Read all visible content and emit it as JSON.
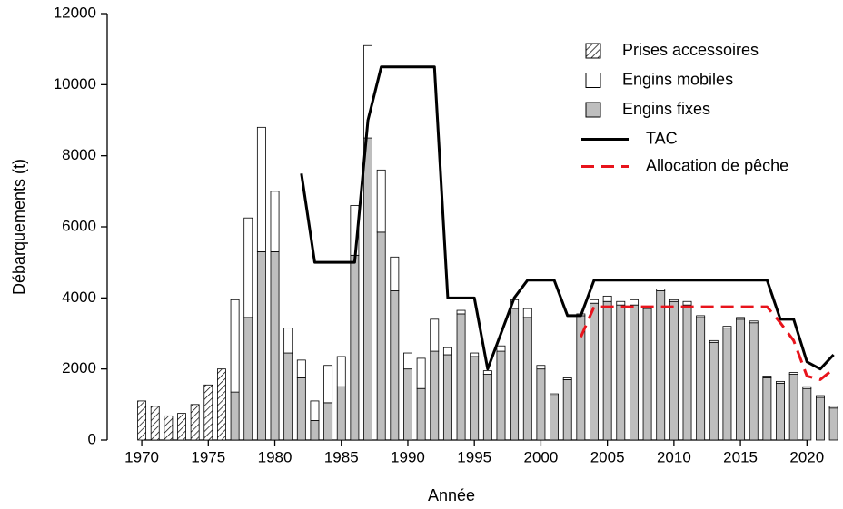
{
  "chart_data": {
    "type": "bar",
    "xlabel": "Année",
    "ylabel": "Débarquements (t)",
    "x": [
      1970,
      1971,
      1972,
      1973,
      1974,
      1975,
      1976,
      1977,
      1978,
      1979,
      1980,
      1981,
      1982,
      1983,
      1984,
      1985,
      1986,
      1987,
      1988,
      1989,
      1990,
      1991,
      1992,
      1993,
      1994,
      1995,
      1996,
      1997,
      1998,
      1999,
      2000,
      2001,
      2002,
      2003,
      2004,
      2005,
      2006,
      2007,
      2008,
      2009,
      2010,
      2011,
      2012,
      2013,
      2014,
      2015,
      2016,
      2017,
      2018,
      2019,
      2020,
      2021,
      2022
    ],
    "series": [
      {
        "name": "Prises accessoires",
        "color": "#000000",
        "pattern": "hatch",
        "values": [
          1100,
          950,
          680,
          750,
          1000,
          1550,
          2000,
          null,
          null,
          null,
          null,
          null,
          null,
          null,
          null,
          null,
          null,
          null,
          null,
          null,
          null,
          null,
          null,
          null,
          null,
          null,
          null,
          null,
          null,
          null,
          null,
          null,
          null,
          null,
          null,
          null,
          null,
          null,
          null,
          null,
          null,
          null,
          null,
          null,
          null,
          null,
          null,
          null,
          null,
          null,
          null,
          null,
          null
        ]
      },
      {
        "name": "Engins mobiles",
        "color": "#ffffff",
        "values": [
          null,
          null,
          null,
          null,
          null,
          null,
          null,
          2600,
          2800,
          3500,
          1700,
          700,
          500,
          550,
          1050,
          850,
          1400,
          2600,
          1750,
          950,
          450,
          850,
          900,
          200,
          100,
          100,
          100,
          150,
          250,
          250,
          100,
          50,
          50,
          50,
          100,
          150,
          100,
          150,
          50,
          50,
          50,
          100,
          50,
          50,
          50,
          50,
          50,
          50,
          50,
          50,
          50,
          50,
          50
        ]
      },
      {
        "name": "Engins fixes",
        "color": "#bebebe",
        "values": [
          null,
          null,
          null,
          null,
          null,
          null,
          null,
          1350,
          3450,
          5300,
          5300,
          2450,
          1750,
          550,
          1050,
          1500,
          5200,
          8500,
          5850,
          4200,
          2000,
          1450,
          2500,
          2400,
          3550,
          2350,
          1850,
          2500,
          3700,
          3450,
          2000,
          1250,
          1700,
          3500,
          3850,
          3900,
          3800,
          3800,
          3700,
          4200,
          3900,
          3800,
          3450,
          2750,
          3150,
          3400,
          3300,
          1750,
          1600,
          1850,
          1450,
          1200,
          900
        ]
      }
    ],
    "lines": [
      {
        "name": "TAC",
        "color": "#000000",
        "dash": "solid",
        "x": [
          1982,
          1983,
          1984,
          1985,
          1986,
          1987,
          1988,
          1989,
          1990,
          1991,
          1992,
          1993,
          1994,
          1995,
          1996,
          1997,
          1998,
          1999,
          2000,
          2001,
          2002,
          2003,
          2004,
          2005,
          2006,
          2007,
          2008,
          2009,
          2010,
          2011,
          2012,
          2013,
          2014,
          2015,
          2016,
          2017,
          2018,
          2019,
          2020,
          2021,
          2022
        ],
        "values": [
          7500,
          5000,
          5000,
          5000,
          5000,
          9000,
          10500,
          10500,
          10500,
          10500,
          10500,
          4000,
          4000,
          4000,
          2000,
          3000,
          4000,
          4500,
          4500,
          4500,
          3500,
          3500,
          4500,
          4500,
          4500,
          4500,
          4500,
          4500,
          4500,
          4500,
          4500,
          4500,
          4500,
          4500,
          4500,
          4500,
          3400,
          3400,
          2200,
          2000,
          2400
        ]
      },
      {
        "name": "Allocation de pêche",
        "color": "#e8141c",
        "dash": "dashed",
        "x": [
          2003,
          2004,
          2005,
          2006,
          2007,
          2008,
          2009,
          2010,
          2011,
          2012,
          2013,
          2014,
          2015,
          2016,
          2017,
          2018,
          2019,
          2020,
          2021,
          2022
        ],
        "values": [
          2900,
          3750,
          3750,
          3750,
          3750,
          3750,
          3750,
          3750,
          3750,
          3750,
          3750,
          3750,
          3750,
          3750,
          3750,
          3300,
          2800,
          1800,
          1700,
          2000
        ]
      }
    ],
    "xlim": [
      1967.4,
      2022.3
    ],
    "xticks": [
      1970,
      1975,
      1980,
      1985,
      1990,
      1995,
      2000,
      2005,
      2010,
      2015,
      2020
    ],
    "ylim": [
      0,
      12000
    ],
    "yticks": [
      0,
      2000,
      4000,
      6000,
      8000,
      10000,
      12000
    ],
    "legend": "top-right"
  }
}
